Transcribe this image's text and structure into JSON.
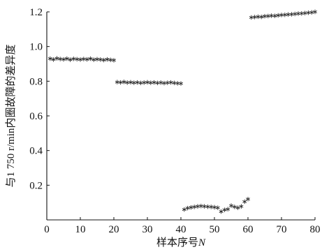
{
  "chart_data": {
    "type": "scatter",
    "title": "",
    "xlabel": "样本序号",
    "xlabel_var": "N",
    "ylabel": "与1 750 r/min内圈故障的差异度",
    "xlim": [
      0,
      80
    ],
    "ylim": [
      0,
      1.2
    ],
    "xticks": [
      "0",
      "10",
      "20",
      "30",
      "40",
      "50",
      "60",
      "70",
      "80"
    ],
    "yticks": [
      "0.2",
      "0.4",
      "0.6",
      "0.8",
      "1.0",
      "1.2"
    ],
    "grid": false,
    "marker": "asterisk",
    "series": [
      {
        "x": [
          1,
          2,
          3,
          4,
          5,
          6,
          7,
          8,
          9,
          10,
          11,
          12,
          13,
          14,
          15,
          16,
          17,
          18,
          19,
          20
        ],
        "y": [
          0.93,
          0.925,
          0.932,
          0.928,
          0.926,
          0.93,
          0.924,
          0.929,
          0.927,
          0.925,
          0.928,
          0.926,
          0.93,
          0.924,
          0.927,
          0.925,
          0.922,
          0.926,
          0.923,
          0.921
        ]
      },
      {
        "x": [
          21,
          22,
          23,
          24,
          25,
          26,
          27,
          28,
          29,
          30,
          31,
          32,
          33,
          34,
          35,
          36,
          37,
          38,
          39,
          40
        ],
        "y": [
          0.795,
          0.793,
          0.796,
          0.792,
          0.794,
          0.791,
          0.793,
          0.79,
          0.792,
          0.794,
          0.791,
          0.793,
          0.79,
          0.792,
          0.789,
          0.791,
          0.793,
          0.79,
          0.788,
          0.787
        ]
      },
      {
        "x": [
          41,
          42,
          43,
          44,
          45,
          46,
          47,
          48,
          49,
          50,
          51,
          52,
          53,
          54,
          55,
          56,
          57,
          58,
          59,
          60
        ],
        "y": [
          0.06,
          0.068,
          0.072,
          0.075,
          0.078,
          0.08,
          0.078,
          0.076,
          0.075,
          0.073,
          0.07,
          0.048,
          0.058,
          0.062,
          0.082,
          0.075,
          0.07,
          0.078,
          0.105,
          0.12
        ]
      },
      {
        "x": [
          61,
          62,
          63,
          64,
          65,
          66,
          67,
          68,
          69,
          70,
          71,
          72,
          73,
          74,
          75,
          76,
          77,
          78,
          79,
          80
        ],
        "y": [
          1.168,
          1.17,
          1.172,
          1.171,
          1.175,
          1.176,
          1.178,
          1.177,
          1.18,
          1.182,
          1.183,
          1.185,
          1.186,
          1.188,
          1.19,
          1.191,
          1.193,
          1.195,
          1.197,
          1.2
        ]
      }
    ]
  }
}
